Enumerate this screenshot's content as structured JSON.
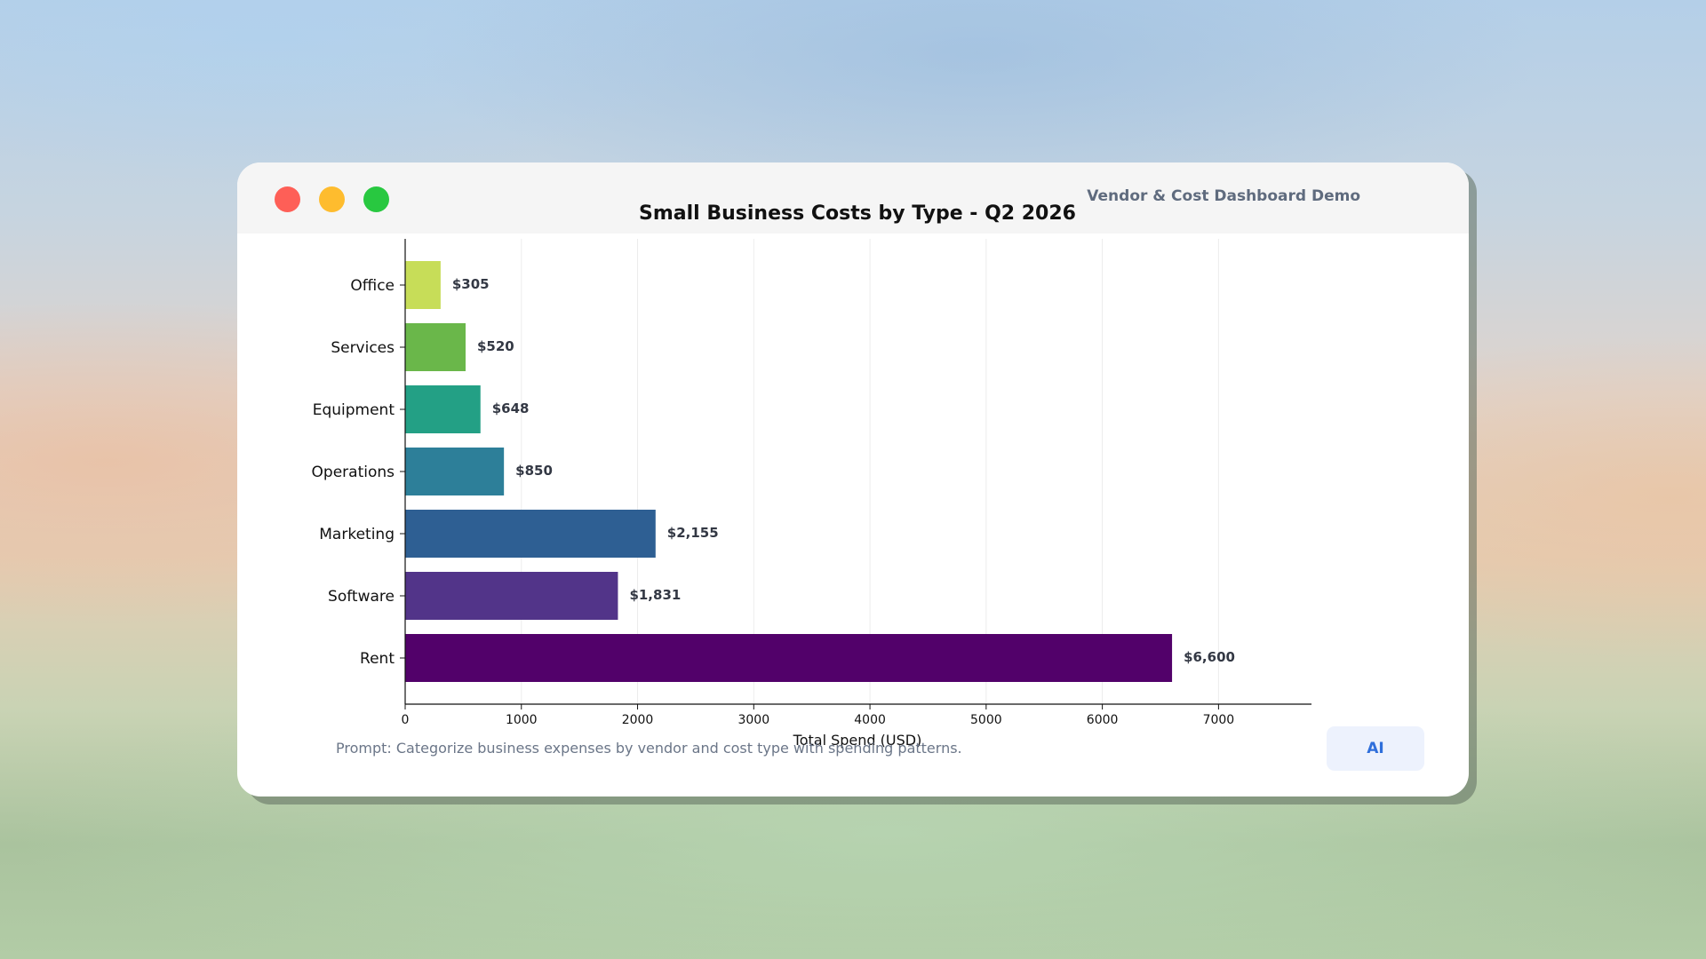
{
  "window": {
    "brand": "Vendor & Cost Dashboard Demo",
    "prompt": "Prompt: Categorize business expenses by vendor and cost type with spending patterns.",
    "ai_button": "AI"
  },
  "chart_data": {
    "type": "bar",
    "orientation": "horizontal",
    "title": "Small Business Costs by Type - Q2 2026",
    "xlabel": "Total Spend (USD)",
    "ylabel": "",
    "categories": [
      "Office",
      "Services",
      "Equipment",
      "Operations",
      "Marketing",
      "Software",
      "Rent"
    ],
    "values": [
      305,
      520,
      648,
      850,
      2155,
      1831,
      6600
    ],
    "value_labels": [
      "$305",
      "$520",
      "$648",
      "$850",
      "$2,155",
      "$1,831",
      "$6,600"
    ],
    "colors": [
      "#c7dd58",
      "#6ab74a",
      "#23a085",
      "#2d7f99",
      "#2e5f93",
      "#523489",
      "#52016a"
    ],
    "xlim": [
      0,
      7800
    ],
    "xticks": [
      0,
      1000,
      2000,
      3000,
      4000,
      5000,
      6000,
      7000
    ],
    "grid": "vertical"
  }
}
